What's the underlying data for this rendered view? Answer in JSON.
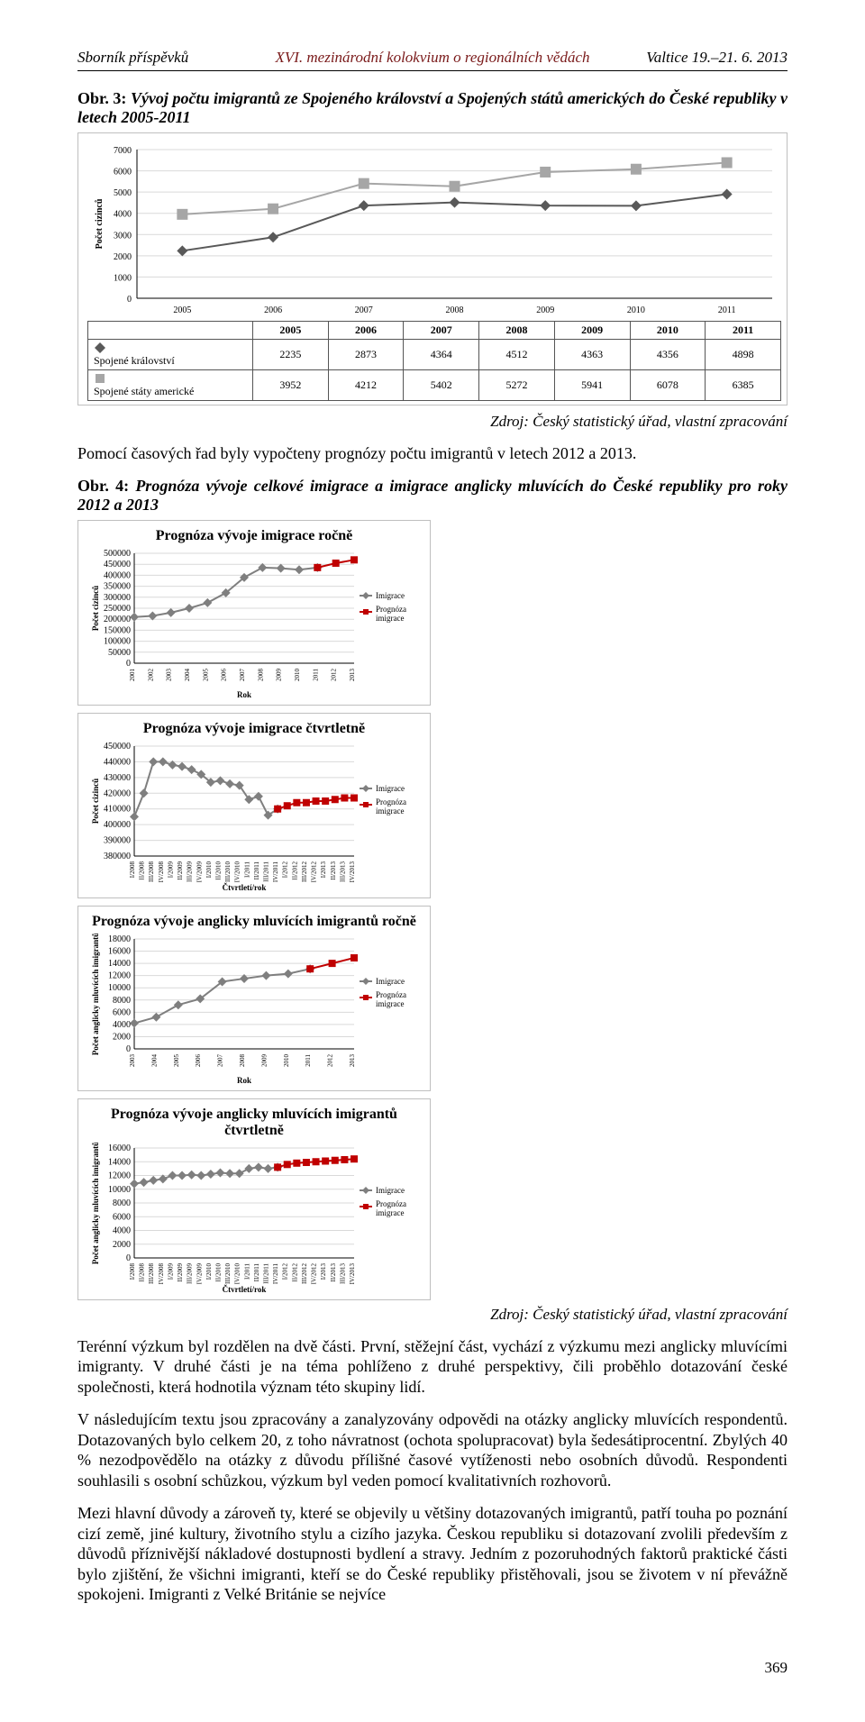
{
  "header": {
    "left": "Sborník příspěvků",
    "center": "XVI. mezinárodní kolokvium o regionálních vědách",
    "right": "Valtice 19.–21. 6. 2013"
  },
  "caption3": {
    "prefix": "Obr. 3: ",
    "text": "Vývoj počtu imigrantů ze Spojeného království a Spojených států amerických do České republiky v letech 2005-2011"
  },
  "chart3": {
    "type": "line-with-table",
    "ylabel": "Počet cizinců",
    "ylim": [
      0,
      7000
    ],
    "ytick_step": 1000,
    "years": [
      2005,
      2006,
      2007,
      2008,
      2009,
      2010,
      2011
    ],
    "series": [
      {
        "name": "Spojené království",
        "marker": "diamond",
        "color": "#595959",
        "values": [
          2235,
          2873,
          4364,
          4512,
          4363,
          4356,
          4898
        ]
      },
      {
        "name": "Spojené státy americké",
        "marker": "square",
        "color": "#a6a6a6",
        "values": [
          3952,
          4212,
          5402,
          5272,
          5941,
          6078,
          6385
        ]
      }
    ],
    "background": "#ffffff",
    "grid_color": "#d9d9d9",
    "line_width": 2,
    "marker_size": 6,
    "title_fontsize": 14,
    "label_fontsize": 11
  },
  "credit1": "Zdroj: Český statistický úřad, vlastní zpracování",
  "para_between": "Pomocí časových řad byly vypočteny prognózy počtu imigrantů v letech 2012 a 2013.",
  "caption4": {
    "prefix": "Obr. 4: ",
    "text": "Prognóza vývoje celkové imigrace a imigrace anglicky mluvících do České republiky pro roky 2012 a 2013"
  },
  "grid": {
    "legend_labels": [
      "Imigrace",
      "Prognóza imigrace"
    ],
    "legend_colors": [
      "#7f7f7f",
      "#c00000"
    ],
    "grid_color": "#d9d9d9",
    "background": "#ffffff",
    "line_width": 2,
    "marker_size": 5,
    "panels": [
      {
        "title": "Prognóza vývoje imigrace ročně",
        "xlabel": "Rok",
        "ylabel": "Počet cizinců",
        "ylim": [
          0,
          500000
        ],
        "ytick_step": 50000,
        "categories": [
          "2001",
          "2002",
          "2003",
          "2004",
          "2005",
          "2006",
          "2007",
          "2008",
          "2009",
          "2010",
          "2011",
          "2012",
          "2013"
        ],
        "series": [
          {
            "which": 0,
            "values": [
              210000,
              215000,
              230000,
              250000,
              275000,
              320000,
              390000,
              435000,
              432000,
              425000,
              435000,
              null,
              null
            ]
          },
          {
            "which": 1,
            "values": [
              null,
              null,
              null,
              null,
              null,
              null,
              null,
              null,
              null,
              null,
              435000,
              455000,
              470000
            ]
          }
        ]
      },
      {
        "title": "Prognóza vývoje imigrace čtvrtletně",
        "xlabel": "Čtvrtletí/rok",
        "ylabel": "Počet cizinců",
        "ylim": [
          380000,
          450000
        ],
        "ytick_step": 10000,
        "categories": [
          "I/2008",
          "II/2008",
          "III/2008",
          "IV/2008",
          "I/2009",
          "II/2009",
          "III/2009",
          "IV/2009",
          "I/2010",
          "II/2010",
          "III/2010",
          "IV/2010",
          "I/2011",
          "II/2011",
          "III/2011",
          "IV/2011",
          "I/2012",
          "II/2012",
          "III/2012",
          "IV/2012",
          "I/2013",
          "II/2013",
          "III/2013",
          "IV/2013"
        ],
        "series": [
          {
            "which": 0,
            "values": [
              405000,
              420000,
              440000,
              440000,
              438000,
              437000,
              435000,
              432000,
              427000,
              428000,
              426000,
              425000,
              416000,
              418000,
              406000,
              410000,
              null,
              null,
              null,
              null,
              null,
              null,
              null,
              null
            ]
          },
          {
            "which": 1,
            "values": [
              null,
              null,
              null,
              null,
              null,
              null,
              null,
              null,
              null,
              null,
              null,
              null,
              null,
              null,
              null,
              410000,
              412000,
              414000,
              414000,
              415000,
              415000,
              416000,
              417000,
              417000
            ]
          }
        ]
      },
      {
        "title": "Prognóza vývoje anglicky mluvících imigrantů ročně",
        "xlabel": "Rok",
        "ylabel": "Počet anglicky mluvících imigrantů",
        "ylim": [
          0,
          18000
        ],
        "ytick_step": 2000,
        "categories": [
          "2003",
          "2004",
          "2005",
          "2006",
          "2007",
          "2008",
          "2009",
          "2010",
          "2011",
          "2012",
          "2013"
        ],
        "series": [
          {
            "which": 0,
            "values": [
              4200,
              5200,
              7200,
              8200,
              11000,
              11500,
              12000,
              12300,
              13100,
              null,
              null
            ]
          },
          {
            "which": 1,
            "values": [
              null,
              null,
              null,
              null,
              null,
              null,
              null,
              null,
              13100,
              14000,
              14900
            ]
          }
        ]
      },
      {
        "title": "Prognóza vývoje anglicky mluvících imigrantů čtvrtletně",
        "xlabel": "Čtvrtletí/rok",
        "ylabel": "Počet anglicky mluvících imigrantů",
        "ylim": [
          0,
          16000
        ],
        "ytick_step": 2000,
        "categories": [
          "I/2008",
          "II/2008",
          "III/2008",
          "IV/2008",
          "I/2009",
          "II/2009",
          "III/2009",
          "IV/2009",
          "I/2010",
          "II/2010",
          "III/2010",
          "IV/2010",
          "I/2011",
          "II/2011",
          "III/2011",
          "IV/2011",
          "I/2012",
          "II/2012",
          "III/2012",
          "IV/2012",
          "I/2013",
          "II/2013",
          "III/2013",
          "IV/2013"
        ],
        "series": [
          {
            "which": 0,
            "values": [
              10800,
              11000,
              11300,
              11500,
              12000,
              12000,
              12100,
              12000,
              12200,
              12400,
              12300,
              12300,
              13000,
              13200,
              13000,
              13200,
              null,
              null,
              null,
              null,
              null,
              null,
              null,
              null
            ]
          },
          {
            "which": 1,
            "values": [
              null,
              null,
              null,
              null,
              null,
              null,
              null,
              null,
              null,
              null,
              null,
              null,
              null,
              null,
              null,
              13200,
              13600,
              13800,
              13900,
              14000,
              14100,
              14200,
              14300,
              14400
            ]
          }
        ]
      }
    ]
  },
  "credit2": "Zdroj: Český statistický úřad, vlastní zpracování",
  "body_paras": [
    "Terénní výzkum byl rozdělen na dvě části. První, stěžejní část, vychází z výzkumu mezi anglicky mluvícími imigranty. V druhé části je na téma pohlíženo z druhé perspektivy, čili proběhlo dotazování české společnosti, která hodnotila význam této skupiny lidí.",
    "V následujícím textu jsou zpracovány a zanalyzovány odpovědi na otázky anglicky mluvících respondentů. Dotazovaných bylo celkem 20, z toho návratnost (ochota spolupracovat) byla šedesátiprocentní. Zbylých 40 % nezodpovědělo na otázky z důvodu přílišné časové vytíženosti nebo osobních důvodů. Respondenti souhlasili s osobní schůzkou, výzkum byl veden pomocí kvalitativních rozhovorů.",
    "Mezi hlavní důvody a zároveň ty, které se objevily u většiny dotazovaných imigrantů, patří touha po poznání cizí země, jiné kultury, životního stylu a cizího jazyka. Českou republiku si dotazovaní zvolili především z důvodů příznivější nákladové dostupnosti bydlení a stravy. Jedním z pozoruhodných faktorů praktické části bylo zjištění, že všichni imigranti, kteří se do České republiky přistěhovali, jsou se životem v ní převážně spokojeni. Imigranti z Velké Británie se nejvíce"
  ],
  "page_number": "369"
}
